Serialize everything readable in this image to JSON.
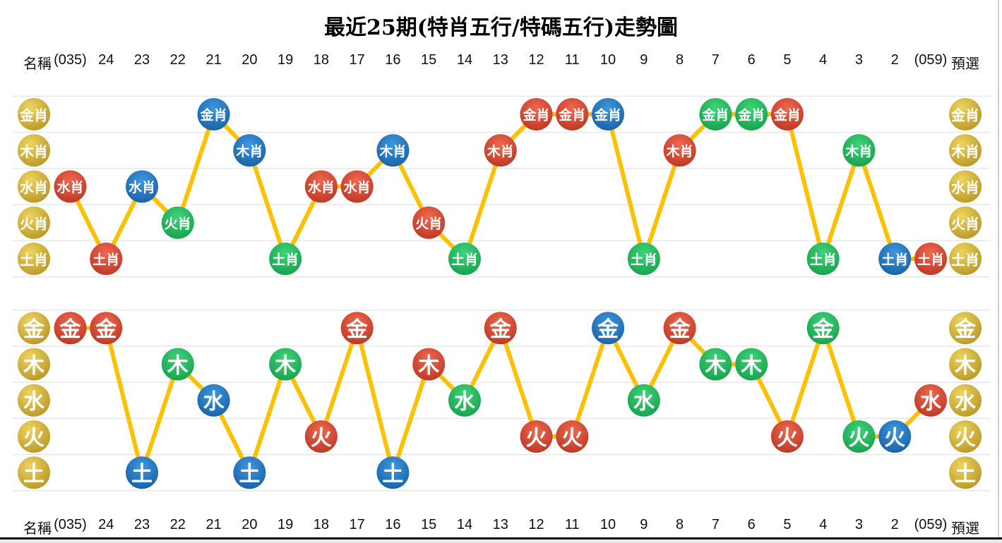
{
  "title": "最近25期(特肖五行/特碼五行)走勢圖",
  "columns": [
    "名稱",
    "(035)",
    "24",
    "23",
    "22",
    "21",
    "20",
    "19",
    "18",
    "17",
    "16",
    "15",
    "14",
    "13",
    "12",
    "11",
    "10",
    "9",
    "8",
    "7",
    "6",
    "5",
    "4",
    "3",
    "2",
    "(059)",
    "預選"
  ],
  "colors": {
    "red": "#d9412f",
    "red_light": "#f0684f",
    "red_dark": "#b5301f",
    "blue": "#1f6fbf",
    "blue_light": "#3e97e0",
    "blue_dark": "#135a9e",
    "green": "#1fb158",
    "green_light": "#3ed47a",
    "green_dark": "#129a46",
    "gold": "#d4af37",
    "gold_light": "#eed45f",
    "gold_dark": "#b08c1c",
    "line": "#ffc000",
    "gridline": "#e4e4e4"
  },
  "chart_data": [
    {
      "type": "line",
      "name": "特肖五行走勢",
      "row_labels": [
        "金肖",
        "木肖",
        "水肖",
        "火肖",
        "土肖"
      ],
      "x": [
        "(035)",
        "24",
        "23",
        "22",
        "21",
        "20",
        "19",
        "18",
        "17",
        "16",
        "15",
        "14",
        "13",
        "12",
        "11",
        "10",
        "9",
        "8",
        "7",
        "6",
        "5",
        "4",
        "3",
        "2",
        "(059)"
      ],
      "points": [
        {
          "x": "(035)",
          "value": "水肖",
          "color": "red"
        },
        {
          "x": "24",
          "value": "土肖",
          "color": "red"
        },
        {
          "x": "23",
          "value": "水肖",
          "color": "blue"
        },
        {
          "x": "22",
          "value": "火肖",
          "color": "green"
        },
        {
          "x": "21",
          "value": "金肖",
          "color": "blue"
        },
        {
          "x": "20",
          "value": "木肖",
          "color": "blue"
        },
        {
          "x": "19",
          "value": "土肖",
          "color": "green"
        },
        {
          "x": "18",
          "value": "水肖",
          "color": "red"
        },
        {
          "x": "17",
          "value": "水肖",
          "color": "red"
        },
        {
          "x": "16",
          "value": "木肖",
          "color": "blue"
        },
        {
          "x": "15",
          "value": "火肖",
          "color": "red"
        },
        {
          "x": "14",
          "value": "土肖",
          "color": "green"
        },
        {
          "x": "13",
          "value": "木肖",
          "color": "red"
        },
        {
          "x": "12",
          "value": "金肖",
          "color": "red"
        },
        {
          "x": "11",
          "value": "金肖",
          "color": "red"
        },
        {
          "x": "10",
          "value": "金肖",
          "color": "blue"
        },
        {
          "x": "9",
          "value": "土肖",
          "color": "green"
        },
        {
          "x": "8",
          "value": "木肖",
          "color": "red"
        },
        {
          "x": "7",
          "value": "金肖",
          "color": "green"
        },
        {
          "x": "6",
          "value": "金肖",
          "color": "green"
        },
        {
          "x": "5",
          "value": "金肖",
          "color": "red"
        },
        {
          "x": "4",
          "value": "土肖",
          "color": "green"
        },
        {
          "x": "3",
          "value": "木肖",
          "color": "green"
        },
        {
          "x": "2",
          "value": "土肖",
          "color": "blue"
        },
        {
          "x": "(059)",
          "value": "土肖",
          "color": "red"
        }
      ]
    },
    {
      "type": "line",
      "name": "特碼五行走勢",
      "row_labels": [
        "金",
        "木",
        "水",
        "火",
        "土"
      ],
      "x": [
        "(035)",
        "24",
        "23",
        "22",
        "21",
        "20",
        "19",
        "18",
        "17",
        "16",
        "15",
        "14",
        "13",
        "12",
        "11",
        "10",
        "9",
        "8",
        "7",
        "6",
        "5",
        "4",
        "3",
        "2",
        "(059)"
      ],
      "points": [
        {
          "x": "(035)",
          "value": "金",
          "color": "red"
        },
        {
          "x": "24",
          "value": "金",
          "color": "red"
        },
        {
          "x": "23",
          "value": "土",
          "color": "blue"
        },
        {
          "x": "22",
          "value": "木",
          "color": "green"
        },
        {
          "x": "21",
          "value": "水",
          "color": "blue"
        },
        {
          "x": "20",
          "value": "土",
          "color": "blue"
        },
        {
          "x": "19",
          "value": "木",
          "color": "green"
        },
        {
          "x": "18",
          "value": "火",
          "color": "red"
        },
        {
          "x": "17",
          "value": "金",
          "color": "red"
        },
        {
          "x": "16",
          "value": "土",
          "color": "blue"
        },
        {
          "x": "15",
          "value": "木",
          "color": "red"
        },
        {
          "x": "14",
          "value": "水",
          "color": "green"
        },
        {
          "x": "13",
          "value": "金",
          "color": "red"
        },
        {
          "x": "12",
          "value": "火",
          "color": "red"
        },
        {
          "x": "11",
          "value": "火",
          "color": "red"
        },
        {
          "x": "10",
          "value": "金",
          "color": "blue"
        },
        {
          "x": "9",
          "value": "水",
          "color": "green"
        },
        {
          "x": "8",
          "value": "金",
          "color": "red"
        },
        {
          "x": "7",
          "value": "木",
          "color": "green"
        },
        {
          "x": "6",
          "value": "木",
          "color": "green"
        },
        {
          "x": "5",
          "value": "火",
          "color": "red"
        },
        {
          "x": "4",
          "value": "金",
          "color": "green"
        },
        {
          "x": "3",
          "value": "火",
          "color": "green"
        },
        {
          "x": "2",
          "value": "火",
          "color": "blue"
        },
        {
          "x": "(059)",
          "value": "水",
          "color": "red"
        }
      ]
    }
  ]
}
